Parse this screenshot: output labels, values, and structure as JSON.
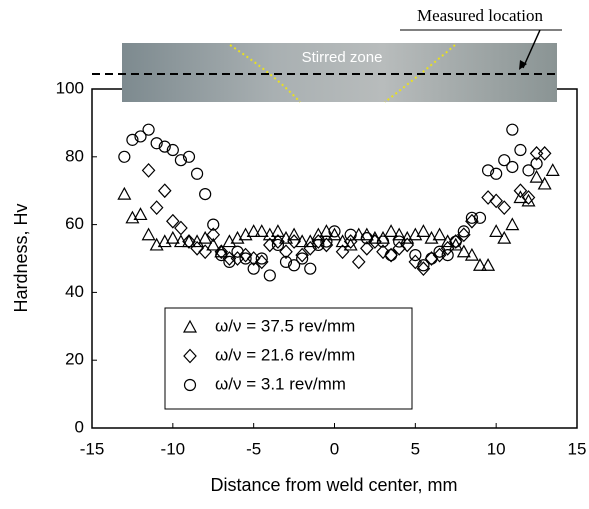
{
  "chart_data": {
    "type": "scatter",
    "x_label": "Distance from weld center, mm",
    "y_label": "Hardness, Hv",
    "annotations": [
      "Stirred zone",
      "Measured location"
    ],
    "xlim": [
      -15,
      15
    ],
    "xticks": [
      -15,
      -10,
      -5,
      0,
      5,
      10,
      15
    ],
    "ylim": [
      0,
      100
    ],
    "yticks": [
      0,
      20,
      40,
      60,
      80,
      100
    ],
    "legend": "lower-left",
    "series": [
      {
        "name": "ω/ν = 37.5 rev/mm",
        "marker": "triangle",
        "color": "#000000",
        "x": [
          -13,
          -12.5,
          -12,
          -11.5,
          -11,
          -10.5,
          -10,
          -9.5,
          -9,
          -8.5,
          -8,
          -7.5,
          -7,
          -6.5,
          -6,
          -5.5,
          -5,
          -4.5,
          -4,
          -3.5,
          -3,
          -2.5,
          -2,
          -1.5,
          -1,
          -0.5,
          0,
          0.5,
          1,
          1.5,
          2,
          2.5,
          3,
          3.5,
          4,
          4.5,
          5,
          5.5,
          6,
          6.5,
          7,
          7.5,
          8,
          8.5,
          9,
          9.5,
          10,
          10.5,
          11,
          11.5,
          12,
          12.5,
          13,
          13.5
        ],
        "values": [
          69,
          62,
          63,
          57,
          54,
          55,
          56,
          55,
          55,
          55,
          56,
          54,
          52,
          55,
          56,
          57,
          58,
          58,
          57,
          58,
          56,
          57,
          55,
          55,
          57,
          58,
          57,
          55,
          54,
          57,
          57,
          56,
          56,
          58,
          57,
          56,
          57,
          58,
          56,
          57,
          55,
          54,
          52,
          51,
          48,
          48,
          58,
          56,
          60,
          68,
          67,
          74,
          72,
          76
        ]
      },
      {
        "name": "ω/ν = 21.6 rev/mm",
        "marker": "diamond",
        "color": "#000000",
        "x": [
          -11.5,
          -11,
          -10.5,
          -10,
          -9.5,
          -9,
          -8.5,
          -8,
          -7.5,
          -7,
          -6.5,
          -6,
          -5.5,
          -5,
          -4.5,
          -4,
          -3.5,
          -3,
          -2.5,
          -2,
          -1.5,
          -1,
          -0.5,
          0.5,
          1,
          1.5,
          2,
          2.5,
          3,
          3.5,
          4,
          4.5,
          5,
          5.5,
          6,
          6.5,
          7,
          7.5,
          8,
          8.5,
          9.5,
          10,
          10.5,
          11.5,
          12,
          12.5,
          13
        ],
        "values": [
          76,
          65,
          70,
          61,
          59,
          55,
          53,
          52,
          57,
          52,
          50,
          50,
          51,
          50,
          49,
          54,
          55,
          52,
          55,
          51,
          53,
          55,
          54,
          52,
          55,
          49,
          53,
          55,
          52,
          51,
          53,
          54,
          49,
          47,
          50,
          51,
          53,
          55,
          57,
          61,
          68,
          67,
          65,
          70,
          68,
          81,
          81
        ]
      },
      {
        "name": "ω/ν = 3.1 rev/mm",
        "marker": "circle",
        "color": "#000000",
        "x": [
          -13,
          -12.5,
          -12,
          -11.5,
          -11,
          -10.5,
          -10,
          -9.5,
          -9,
          -8.5,
          -8,
          -7.5,
          -7,
          -6.5,
          -6,
          -5.5,
          -5,
          -4.5,
          -4,
          -3.5,
          -3,
          -2.5,
          -2,
          -1.5,
          -1,
          -0.5,
          0,
          1,
          2,
          3,
          3.5,
          4,
          5,
          5.5,
          6,
          6.5,
          7,
          7.5,
          8,
          8.5,
          9,
          9.5,
          10,
          10.5,
          11,
          11,
          11.5,
          12,
          12.5
        ],
        "values": [
          80,
          85,
          86,
          88,
          84,
          83,
          82,
          79,
          80,
          75,
          69,
          60,
          51,
          49,
          52,
          50,
          47,
          50,
          45,
          54,
          49,
          48,
          50,
          47,
          54,
          55,
          58,
          57,
          56,
          55,
          51,
          55,
          51,
          48,
          50,
          52,
          51,
          55,
          58,
          62,
          62,
          76,
          75,
          79,
          77,
          88,
          82,
          76,
          78
        ]
      }
    ]
  }
}
